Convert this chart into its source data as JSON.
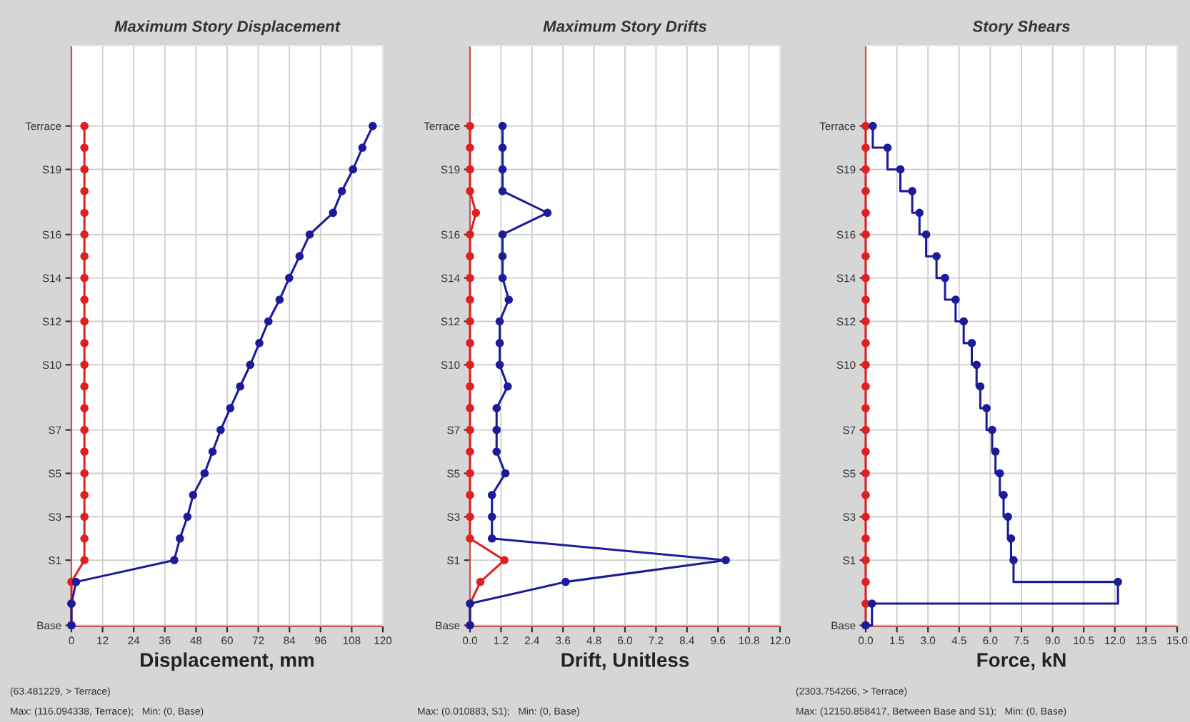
{
  "chart_data": [
    {
      "type": "line",
      "orientation": "horizontal",
      "title": "Maximum Story Displacement",
      "xlabel": "Displacement, mm",
      "categories": [
        "Terrace",
        null,
        "S19",
        null,
        null,
        "S16",
        null,
        "S14",
        null,
        "S12",
        null,
        "S10",
        null,
        null,
        "S7",
        null,
        "S5",
        null,
        "S3",
        null,
        "S1",
        null,
        null,
        "Base"
      ],
      "series": [
        {
          "color": "#e02020",
          "values": [
            5,
            5,
            5,
            5,
            5,
            5,
            5,
            5,
            5,
            5,
            5,
            5,
            5,
            5,
            5,
            5,
            5,
            5,
            5,
            5,
            5,
            0,
            0,
            0
          ]
        },
        {
          "color": "#1c1c9a",
          "values": [
            116.1,
            112.1,
            108.5,
            104.2,
            100.8,
            91.8,
            87.9,
            83.9,
            80.2,
            75.9,
            72.4,
            68.9,
            65.0,
            61.2,
            57.5,
            54.4,
            51.3,
            46.9,
            44.7,
            41.8,
            39.6,
            1.8,
            0,
            0
          ]
        }
      ],
      "xlim": [
        0,
        120
      ],
      "xticks": [
        0,
        12,
        24,
        36,
        48,
        60,
        72,
        84,
        96,
        108,
        120
      ],
      "grid": true,
      "marker": "circle",
      "line_style": "solid",
      "annotations": [
        "(63.481229, > Terrace)",
        "Max: (116.094338, Terrace);   Min: (0, Base)"
      ]
    },
    {
      "type": "line",
      "orientation": "horizontal",
      "title": "Maximum Story Drifts",
      "xlabel": "Drift, Unitless",
      "categories": [
        "Terrace",
        null,
        "S19",
        null,
        null,
        "S16",
        null,
        "S14",
        null,
        "S12",
        null,
        "S10",
        null,
        null,
        "S7",
        null,
        "S5",
        null,
        "S3",
        null,
        "S1",
        null,
        null,
        "Base"
      ],
      "series": [
        {
          "color": "#e02020",
          "values": [
            0,
            0,
            0,
            0,
            0.23,
            0,
            0,
            0,
            0,
            0,
            0,
            0,
            0,
            0,
            0,
            0,
            0,
            0,
            0,
            0,
            1.33,
            0.4,
            0,
            0
          ]
        },
        {
          "color": "#1c1c9a",
          "values": [
            1.26,
            1.26,
            1.26,
            1.26,
            3.0,
            1.26,
            1.26,
            1.26,
            1.5,
            1.15,
            1.15,
            1.15,
            1.46,
            1.03,
            1.03,
            1.03,
            1.37,
            0.85,
            0.85,
            0.85,
            9.9,
            3.7,
            0,
            0
          ]
        }
      ],
      "xlim": [
        0,
        12
      ],
      "xticks": [
        {
          "value": 0,
          "label": "0.0"
        },
        1.2,
        2.4,
        3.6,
        4.8,
        {
          "value": 6,
          "label": "6.0"
        },
        7.2,
        8.4,
        9.6,
        10.8,
        {
          "value": 12,
          "label": "12.0"
        }
      ],
      "grid": true,
      "marker": "circle",
      "line_style": "solid",
      "annotations": [
        "Max: (0.010883, S1);   Min: (0, Base)"
      ]
    },
    {
      "type": "step",
      "orientation": "horizontal",
      "title": "Story Shears",
      "xlabel": "Force, kN",
      "categories": [
        "Terrace",
        null,
        "S19",
        null,
        null,
        "S16",
        null,
        "S14",
        null,
        "S12",
        null,
        "S10",
        null,
        null,
        "S7",
        null,
        "S5",
        null,
        "S3",
        null,
        "S1",
        null,
        null,
        "Base"
      ],
      "series": [
        {
          "color": "#e02020",
          "values": [
            0,
            0,
            0,
            0,
            0,
            0,
            0,
            0,
            0,
            0,
            0,
            0,
            0,
            0,
            0,
            0,
            0,
            0,
            0,
            0,
            0,
            0,
            0,
            0
          ]
        },
        {
          "color": "#1c1c9a",
          "values": [
            0.34,
            1.05,
            1.67,
            2.24,
            2.59,
            2.91,
            3.41,
            3.82,
            4.33,
            4.72,
            5.11,
            5.34,
            5.52,
            5.82,
            6.09,
            6.25,
            6.46,
            6.64,
            6.85,
            7.0,
            7.12,
            12.15,
            0.3,
            0
          ]
        }
      ],
      "xlim": [
        0,
        15
      ],
      "xticks": [
        {
          "value": 0,
          "label": "0.0"
        },
        1.5,
        {
          "value": 3,
          "label": "3.0"
        },
        4.5,
        {
          "value": 6,
          "label": "6.0"
        },
        7.5,
        {
          "value": 9,
          "label": "9.0"
        },
        10.5,
        {
          "value": 12,
          "label": "12.0"
        },
        13.5,
        {
          "value": 15,
          "label": "15.0"
        }
      ],
      "grid": true,
      "marker": "circle",
      "line_style": "solid",
      "annotations": [
        "(2303.754266, > Terrace)",
        "Max: (12150.858417, Between Base and S1);   Min: (0, Base)"
      ]
    }
  ]
}
